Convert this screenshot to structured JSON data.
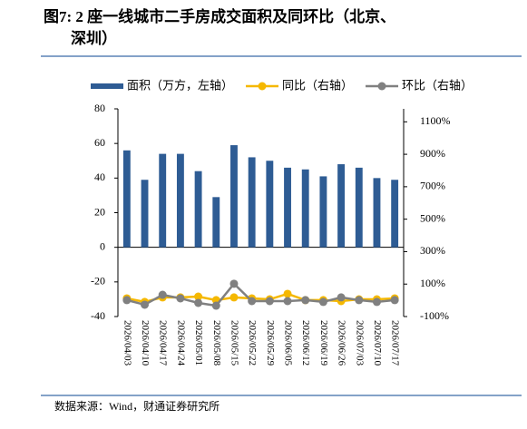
{
  "title": "图7: 2 座一线城市二手房成交面积及同环比（北京、深圳）",
  "source": "数据来源：Wind，财通证券研究所",
  "chart_data": {
    "type": "bar-line",
    "categories": [
      "2026/04/03",
      "2026/04/10",
      "2026/04/17",
      "2026/04/24",
      "2026/05/01",
      "2026/05/08",
      "2026/05/15",
      "2026/05/22",
      "2026/05/29",
      "2026/06/05",
      "2026/06/12",
      "2026/06/19",
      "2026/06/26",
      "2026/07/03",
      "2026/07/10",
      "2026/07/17"
    ],
    "series": [
      {
        "name": "面积（万方，左轴）",
        "type": "bar",
        "color": "#2e5c94",
        "values": [
          56,
          39,
          54,
          54,
          44,
          29,
          59,
          52,
          50,
          46,
          45,
          41,
          48,
          46,
          40,
          39
        ]
      },
      {
        "name": "同比（右轴）",
        "type": "line",
        "axis": "y2",
        "color": "#f5b800",
        "values": [
          12,
          -10,
          18,
          18,
          23,
          1,
          18,
          12,
          6,
          40,
          1,
          1,
          -5,
          6,
          6,
          12
        ]
      },
      {
        "name": "环比（右轴）",
        "type": "line",
        "axis": "y2",
        "color": "#808080",
        "values": [
          1,
          -27,
          34,
          12,
          -16,
          -33,
          102,
          -5,
          -5,
          -5,
          1,
          -10,
          18,
          1,
          -10,
          1
        ]
      }
    ],
    "ylim": [
      -40,
      80
    ],
    "yticks": [
      -40,
      -20,
      0,
      20,
      40,
      60,
      80
    ],
    "y2lim": [
      -100,
      1180
    ],
    "y2ticks": [
      {
        "value": -100,
        "label": "-100%"
      },
      {
        "value": 100,
        "label": "100%"
      },
      {
        "value": 300,
        "label": "300%"
      },
      {
        "value": 500,
        "label": "500%"
      },
      {
        "value": 700,
        "label": "700%"
      },
      {
        "value": 900,
        "label": "900%"
      },
      {
        "value": 1100,
        "label": "1100%"
      }
    ]
  }
}
